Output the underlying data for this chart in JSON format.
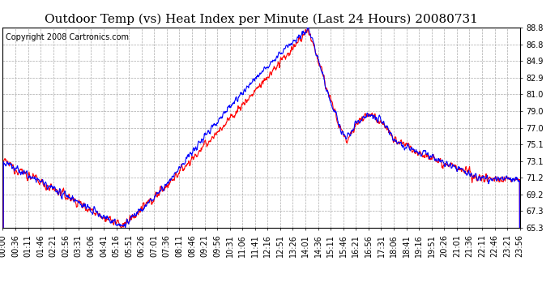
{
  "title": "Outdoor Temp (vs) Heat Index per Minute (Last 24 Hours) 20080731",
  "copyright": "Copyright 2008 Cartronics.com",
  "yticks": [
    65.3,
    67.3,
    69.2,
    71.2,
    73.1,
    75.1,
    77.0,
    79.0,
    81.0,
    82.9,
    84.9,
    86.8,
    88.8
  ],
  "ymin": 65.3,
  "ymax": 88.8,
  "xtick_labels": [
    "00:00",
    "00:36",
    "01:11",
    "01:46",
    "02:21",
    "02:56",
    "03:31",
    "04:06",
    "04:41",
    "05:16",
    "05:51",
    "06:26",
    "07:01",
    "07:36",
    "08:11",
    "08:46",
    "09:21",
    "09:56",
    "10:31",
    "11:06",
    "11:41",
    "12:16",
    "12:51",
    "13:26",
    "14:01",
    "14:36",
    "15:11",
    "15:46",
    "16:21",
    "16:56",
    "17:31",
    "18:06",
    "18:41",
    "19:16",
    "19:51",
    "20:26",
    "21:01",
    "21:36",
    "22:11",
    "22:46",
    "23:21",
    "23:56"
  ],
  "line_red_color": "#ff0000",
  "line_blue_color": "#0000ff",
  "background_color": "#ffffff",
  "grid_color": "#aaaaaa",
  "title_fontsize": 11,
  "copyright_fontsize": 7,
  "tick_fontsize": 7
}
